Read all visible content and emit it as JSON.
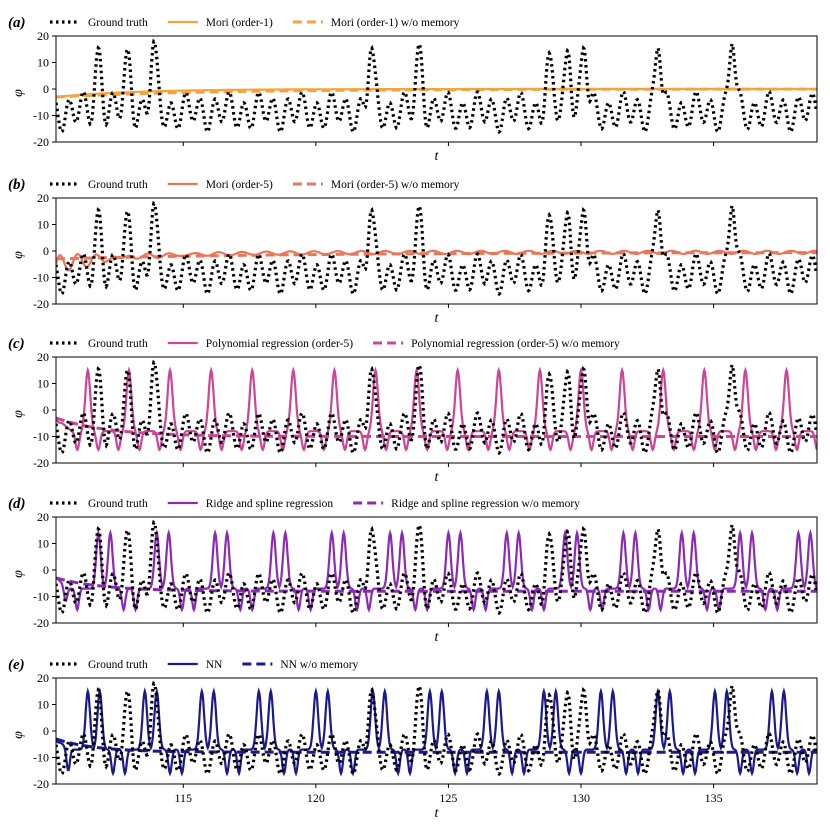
{
  "figure": {
    "xtick_labels": [
      "115",
      "120",
      "125",
      "130",
      "135"
    ]
  },
  "chart_data": [
    {
      "type": "line",
      "panel": "(a)",
      "xlabel": "t",
      "ylabel": "φ",
      "xlim": [
        110.2,
        138.9
      ],
      "ylim": [
        -20,
        20
      ],
      "yticks": [
        20,
        10,
        0,
        -10,
        -20
      ],
      "xticks": [
        115,
        120,
        125,
        130,
        135
      ],
      "show_xtick_labels": false,
      "legend": "top-left, outside, horizontal",
      "series": [
        {
          "name": "Ground truth",
          "kind": "truth",
          "color": "#000000",
          "style": "dotted"
        },
        {
          "name": "Mori (order-1)",
          "kind": "mem",
          "color": "#F5A33A",
          "style": "solid",
          "start": -3,
          "end": 0,
          "ripple_amp": 0,
          "ripple_decay": 1,
          "ripple_freq": 1
        },
        {
          "name": "Mori (order-1) w/o memory",
          "kind": "nomem",
          "color": "#F5A33A",
          "style": "dashed",
          "start": -3,
          "end": 0,
          "tau": 6
        }
      ]
    },
    {
      "type": "line",
      "panel": "(b)",
      "xlabel": "t",
      "ylabel": "φ",
      "xlim": [
        110.2,
        138.9
      ],
      "ylim": [
        -20,
        20
      ],
      "yticks": [
        20,
        10,
        0,
        -10,
        -20
      ],
      "xticks": [
        115,
        120,
        125,
        130,
        135
      ],
      "show_xtick_labels": false,
      "legend": "top-left, outside, horizontal",
      "series": [
        {
          "name": "Ground truth",
          "kind": "truth",
          "color": "#000000",
          "style": "dotted"
        },
        {
          "name": "Mori (order-5)",
          "kind": "mem",
          "color": "#E8775A",
          "style": "solid",
          "start": -5,
          "end": -0.5,
          "ripple_amp": 4,
          "ripple_decay": 1.5,
          "ripple_freq": 1.5
        },
        {
          "name": "Mori (order-5) w/o memory",
          "kind": "nomem",
          "color": "#E8775A",
          "style": "dashed",
          "start": -3,
          "end": -0.5,
          "tau": 9
        }
      ]
    },
    {
      "type": "line",
      "panel": "(c)",
      "xlabel": "t",
      "ylabel": "φ",
      "xlim": [
        110.2,
        138.9
      ],
      "ylim": [
        -20,
        20
      ],
      "yticks": [
        20,
        10,
        0,
        -10,
        -20
      ],
      "xticks": [
        115,
        120,
        125,
        130,
        135
      ],
      "show_xtick_labels": false,
      "legend": "top-left, outside, horizontal",
      "series": [
        {
          "name": "Ground truth",
          "kind": "truth",
          "color": "#000000",
          "style": "dotted"
        },
        {
          "name": "Polynomial regression (order-5)",
          "kind": "osc",
          "color": "#CC4596",
          "style": "solid",
          "period": 1.55,
          "phase": 111.4,
          "amp": 15,
          "base": -8,
          "dip": -15,
          "dip_offset": 0.38
        },
        {
          "name": "Polynomial regression (order-5) w/o memory",
          "kind": "nomem",
          "color": "#CC4596",
          "style": "dashed",
          "start": -3,
          "end": -10,
          "tau": 2
        }
      ]
    },
    {
      "type": "line",
      "panel": "(d)",
      "xlabel": "t",
      "ylabel": "φ",
      "xlim": [
        110.2,
        138.9
      ],
      "ylim": [
        -20,
        20
      ],
      "yticks": [
        20,
        10,
        0,
        -10,
        -20
      ],
      "xticks": [
        115,
        120,
        125,
        130,
        135
      ],
      "show_xtick_labels": false,
      "legend": "top-left, outside, horizontal",
      "series": [
        {
          "name": "Ground truth",
          "kind": "truth",
          "color": "#000000",
          "style": "dotted"
        },
        {
          "name": "Ridge and spline regression",
          "kind": "osc2",
          "color": "#8B2AB5",
          "style": "solid",
          "period": 2.2,
          "phase": 111.5,
          "amp": 14,
          "base": -7,
          "dip": -15
        },
        {
          "name": "Ridge and spline regression w/o memory",
          "kind": "nomem",
          "color": "#8B2AB5",
          "style": "dashed",
          "start": -3,
          "end": -8,
          "tau": 1.8
        }
      ]
    },
    {
      "type": "line",
      "panel": "(e)",
      "xlabel": "t",
      "ylabel": "φ",
      "xlim": [
        110.2,
        138.9
      ],
      "ylim": [
        -20,
        20
      ],
      "yticks": [
        20,
        10,
        0,
        -10,
        -20
      ],
      "xticks": [
        115,
        120,
        125,
        130,
        135
      ],
      "show_xtick_labels": true,
      "legend": "top-left, outside, horizontal",
      "series": [
        {
          "name": "Ground truth",
          "kind": "truth",
          "color": "#000000",
          "style": "dotted"
        },
        {
          "name": "NN",
          "kind": "osc2",
          "color": "#1A1A8C",
          "style": "solid",
          "period": 2.15,
          "phase": 111.1,
          "amp": 15,
          "base": -7,
          "dip": -16
        },
        {
          "name": "NN w/o memory",
          "kind": "nomem",
          "color": "#1A1A8C",
          "style": "dashed",
          "start": -3,
          "end": -8,
          "tau": 1.5
        }
      ]
    }
  ],
  "ground_truth": {
    "peaks": [
      [
        111.8,
        15.5
      ],
      [
        112.9,
        15.0
      ],
      [
        113.9,
        18.0
      ],
      [
        122.1,
        15.5
      ],
      [
        123.9,
        17.0
      ],
      [
        128.8,
        13.5
      ],
      [
        129.5,
        14.5
      ],
      [
        130.1,
        15.5
      ],
      [
        132.9,
        15.5
      ],
      [
        135.7,
        17.0
      ]
    ],
    "low_mean": -8.5,
    "low_amp": 5.5,
    "low_period": 0.55
  }
}
